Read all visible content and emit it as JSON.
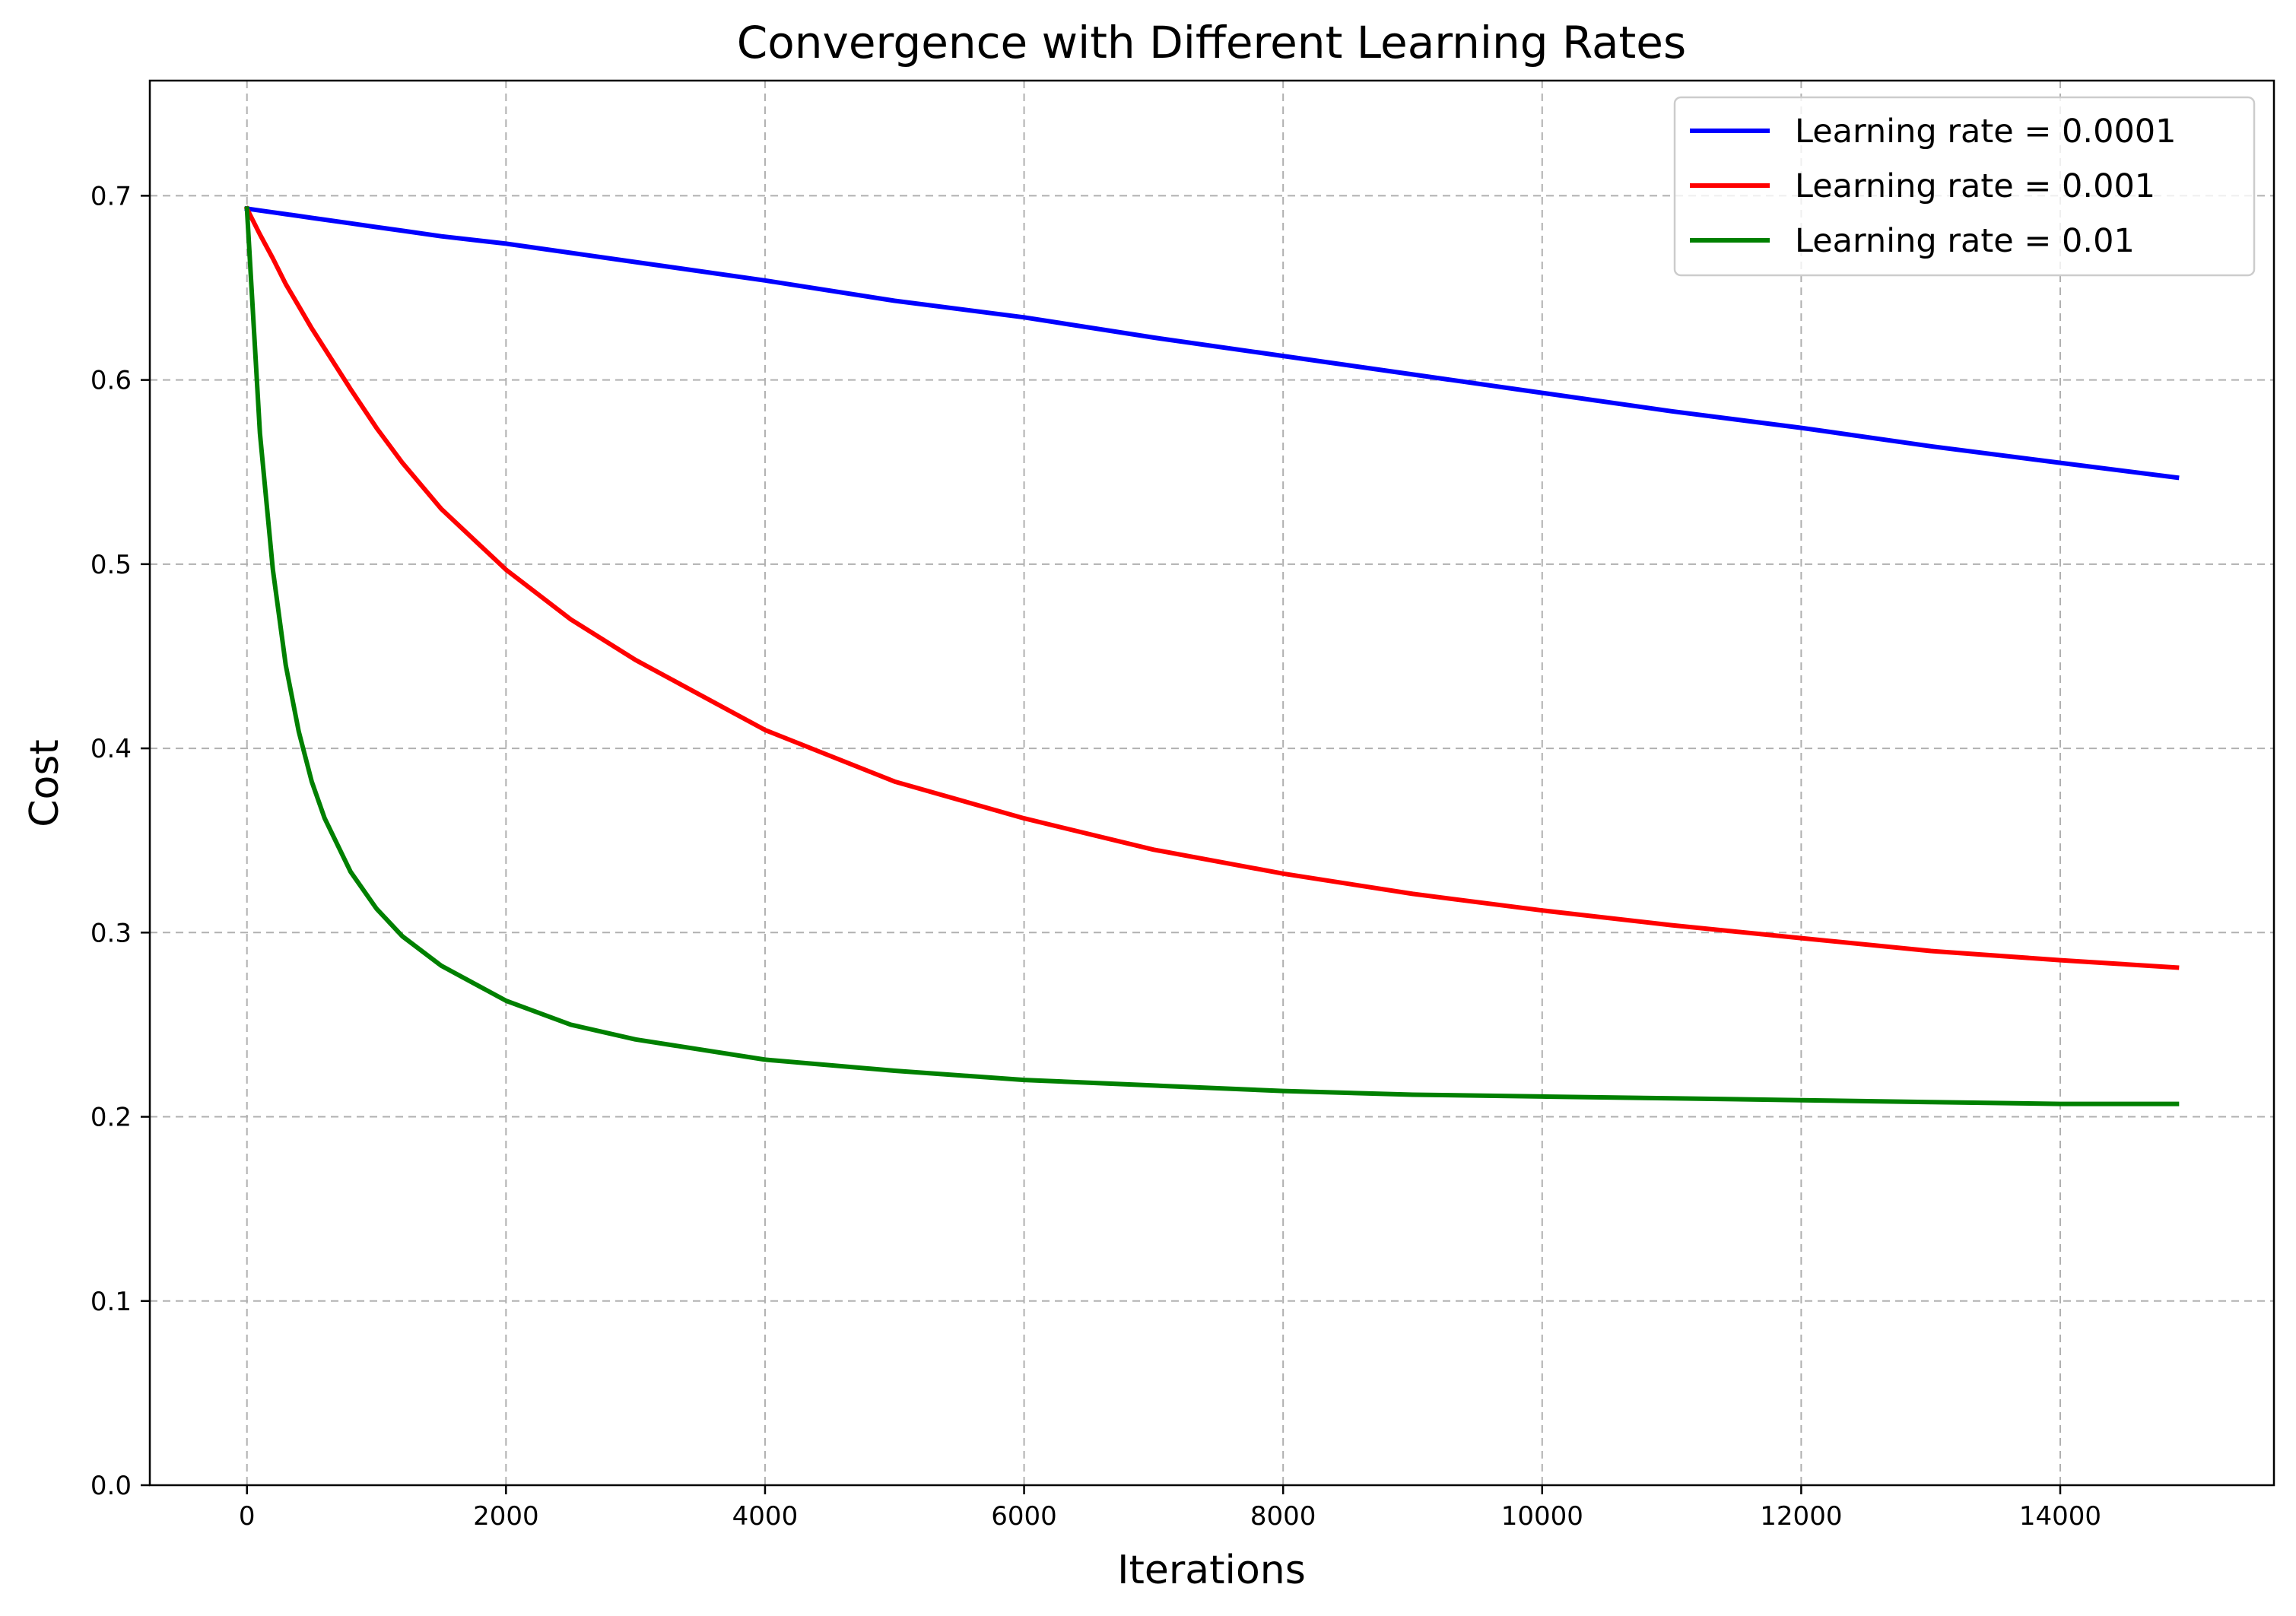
{
  "chart_data": {
    "type": "line",
    "title": "Convergence with Different Learning Rates",
    "xlabel": "Iterations",
    "ylabel": "Cost",
    "xlim": [
      -750,
      15650
    ],
    "ylim": [
      0.0,
      0.7625
    ],
    "xticks": [
      0,
      2000,
      4000,
      6000,
      8000,
      10000,
      12000,
      14000
    ],
    "xtick_labels": [
      "0",
      "2000",
      "4000",
      "6000",
      "8000",
      "10000",
      "12000",
      "14000"
    ],
    "yticks": [
      0.0,
      0.1,
      0.2,
      0.3,
      0.4,
      0.5,
      0.6,
      0.7
    ],
    "ytick_labels": [
      "0.0",
      "0.1",
      "0.2",
      "0.3",
      "0.4",
      "0.5",
      "0.6",
      "0.7"
    ],
    "grid": true,
    "legend_position": "top-right",
    "x": [
      0,
      100,
      200,
      300,
      400,
      500,
      600,
      800,
      1000,
      1200,
      1500,
      2000,
      2500,
      3000,
      4000,
      5000,
      6000,
      7000,
      8000,
      9000,
      10000,
      11000,
      12000,
      13000,
      14000,
      14900
    ],
    "series": [
      {
        "name": "Learning rate = 0.0001",
        "color": "#0000ff",
        "values": [
          0.693,
          0.692,
          0.691,
          0.69,
          0.689,
          0.688,
          0.687,
          0.685,
          0.683,
          0.681,
          0.678,
          0.674,
          0.669,
          0.664,
          0.654,
          0.643,
          0.634,
          0.623,
          0.613,
          0.603,
          0.593,
          0.583,
          0.574,
          0.564,
          0.555,
          0.547
        ]
      },
      {
        "name": "Learning rate = 0.001",
        "color": "#ff0000",
        "values": [
          0.693,
          0.679,
          0.666,
          0.652,
          0.64,
          0.628,
          0.617,
          0.595,
          0.574,
          0.555,
          0.53,
          0.497,
          0.47,
          0.448,
          0.41,
          0.382,
          0.362,
          0.345,
          0.332,
          0.321,
          0.312,
          0.304,
          0.297,
          0.29,
          0.285,
          0.281
        ]
      },
      {
        "name": "Learning rate = 0.01",
        "color": "#008000",
        "values": [
          0.693,
          0.571,
          0.497,
          0.445,
          0.409,
          0.382,
          0.362,
          0.333,
          0.313,
          0.298,
          0.282,
          0.263,
          0.25,
          0.242,
          0.231,
          0.225,
          0.22,
          0.217,
          0.214,
          0.212,
          0.211,
          0.21,
          0.209,
          0.208,
          0.207,
          0.207
        ]
      }
    ]
  }
}
